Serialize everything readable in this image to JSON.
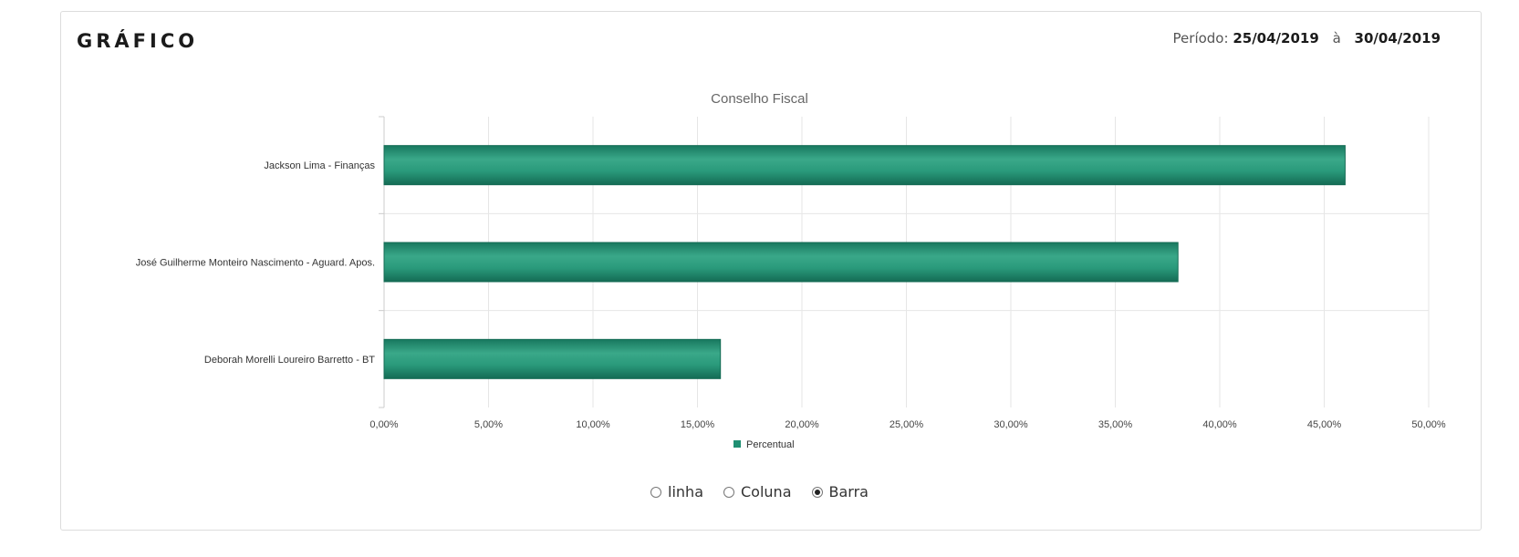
{
  "card": {
    "title": "GRÁFICO",
    "period_label": "Período:",
    "period_start": "25/04/2019",
    "period_sep": "à",
    "period_end": "30/04/2019"
  },
  "chart_data": {
    "type": "bar",
    "orientation": "horizontal",
    "title": "Conselho Fiscal",
    "categories": [
      "Jackson Lima - Finanças",
      "José Guilherme Monteiro Nascimento - Aguard. Apos.",
      "Deborah Morelli Loureiro Barretto - BT"
    ],
    "series": [
      {
        "name": "Percentual",
        "values": [
          46.0,
          38.0,
          16.1
        ],
        "color": "#1f8f72"
      }
    ],
    "xlim": [
      0,
      50
    ],
    "xticks": [
      "0,00%",
      "5,00%",
      "10,00%",
      "15,00%",
      "20,00%",
      "25,00%",
      "30,00%",
      "35,00%",
      "40,00%",
      "45,00%",
      "50,00%"
    ],
    "grid": true,
    "legend": "bottom"
  },
  "chart_type_options": [
    {
      "label": "linha",
      "selected": false
    },
    {
      "label": "Coluna",
      "selected": false
    },
    {
      "label": "Barra",
      "selected": true
    }
  ]
}
